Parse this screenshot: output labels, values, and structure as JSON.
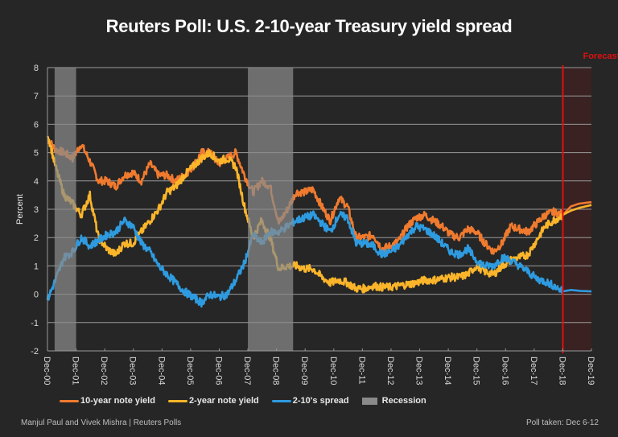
{
  "title": "Reuters Poll: U.S. 2-10-year Treasury yield spread",
  "footer": {
    "credit": "Manjul Paul and Vivek Mishra | Reuters Polls",
    "poll_taken": "Poll taken: Dec 6-12"
  },
  "colors": {
    "ten_year": "#f07a2e",
    "two_year": "#fbb52a",
    "spread": "#2e9be0",
    "recession": "#8a8a8a",
    "forecast_line": "#e01010",
    "forecast_shade": "#3a2222",
    "grid": "#9a9a9a",
    "background": "#262626"
  },
  "chart_data": {
    "type": "line",
    "title": "Reuters Poll: U.S. 2-10-year Treasury yield spread",
    "xlabel": "",
    "ylabel": "Percent",
    "ylim": [
      -2,
      8
    ],
    "yticks": [
      -2,
      -1,
      0,
      1,
      2,
      3,
      4,
      5,
      6,
      7,
      8
    ],
    "xlim": [
      2000.92,
      2019.92
    ],
    "xtick_labels": [
      "Dec-00",
      "Dec-01",
      "Dec-02",
      "Dec-03",
      "Dec-04",
      "Dec-05",
      "Dec-06",
      "Dec-07",
      "Dec-08",
      "Dec-09",
      "Dec-10",
      "Dec-11",
      "Dec-12",
      "Dec-13",
      "Dec-14",
      "Dec-15",
      "Dec-16",
      "Dec-17",
      "Dec-18",
      "Dec-19"
    ],
    "grid": true,
    "legend_position": "bottom",
    "annotation": {
      "text": "Forecast",
      "x": 2018.92
    },
    "recessions": [
      [
        2001.17,
        2001.92
      ],
      [
        2007.92,
        2009.5
      ]
    ],
    "x": [
      2000.92,
      2001.2,
      2001.5,
      2001.8,
      2002.1,
      2002.4,
      2002.7,
      2003.0,
      2003.3,
      2003.6,
      2003.9,
      2004.2,
      2004.5,
      2004.8,
      2005.1,
      2005.4,
      2005.7,
      2006.0,
      2006.3,
      2006.6,
      2006.9,
      2007.2,
      2007.5,
      2007.8,
      2008.1,
      2008.4,
      2008.7,
      2009.0,
      2009.3,
      2009.6,
      2009.9,
      2010.2,
      2010.5,
      2010.8,
      2011.1,
      2011.4,
      2011.7,
      2012.0,
      2012.3,
      2012.6,
      2012.9,
      2013.2,
      2013.5,
      2013.8,
      2014.1,
      2014.4,
      2014.7,
      2015.0,
      2015.3,
      2015.6,
      2015.9,
      2016.2,
      2016.5,
      2016.8,
      2017.1,
      2017.4,
      2017.7,
      2018.0,
      2018.3,
      2018.6,
      2018.92,
      2019.2,
      2019.5,
      2019.92
    ],
    "series": [
      {
        "name": "10-year note yield",
        "values": [
          5.5,
          5.1,
          5.0,
          4.8,
          5.3,
          4.7,
          4.0,
          4.0,
          3.8,
          4.2,
          4.3,
          4.0,
          4.6,
          4.2,
          4.2,
          4.0,
          4.2,
          4.5,
          5.0,
          5.0,
          4.6,
          4.8,
          5.0,
          4.2,
          3.6,
          4.0,
          3.8,
          2.5,
          3.0,
          3.6,
          3.6,
          3.7,
          3.1,
          2.6,
          3.4,
          3.1,
          2.0,
          2.0,
          2.1,
          1.6,
          1.7,
          1.9,
          2.4,
          2.7,
          2.8,
          2.6,
          2.4,
          2.1,
          2.0,
          2.3,
          2.2,
          1.8,
          1.5,
          1.8,
          2.4,
          2.3,
          2.2,
          2.5,
          2.8,
          2.9,
          2.8,
          3.1,
          3.2,
          3.25
        ]
      },
      {
        "name": "2-year note yield",
        "values": [
          5.7,
          4.5,
          3.5,
          3.2,
          2.8,
          3.5,
          2.0,
          1.6,
          1.4,
          1.8,
          1.8,
          2.2,
          2.6,
          3.0,
          3.6,
          3.8,
          4.2,
          4.5,
          4.8,
          5.0,
          4.7,
          4.8,
          4.5,
          3.1,
          2.0,
          2.6,
          2.0,
          0.9,
          1.0,
          1.0,
          0.9,
          0.9,
          0.6,
          0.4,
          0.5,
          0.4,
          0.2,
          0.2,
          0.3,
          0.25,
          0.25,
          0.3,
          0.35,
          0.4,
          0.5,
          0.5,
          0.55,
          0.6,
          0.6,
          0.7,
          1.0,
          0.8,
          0.7,
          1.0,
          1.2,
          1.3,
          1.4,
          1.9,
          2.4,
          2.6,
          2.8,
          2.95,
          3.05,
          3.15
        ]
      },
      {
        "name": "2-10's spread",
        "values": [
          -0.2,
          0.5,
          1.3,
          1.5,
          2.0,
          1.7,
          1.9,
          2.1,
          2.2,
          2.6,
          2.4,
          1.8,
          1.5,
          1.0,
          0.7,
          0.4,
          0.1,
          -0.1,
          -0.3,
          0.0,
          -0.1,
          0.0,
          0.5,
          1.1,
          2.1,
          1.8,
          2.2,
          2.2,
          2.4,
          2.6,
          2.7,
          2.8,
          2.5,
          2.2,
          2.8,
          2.7,
          1.8,
          1.8,
          1.7,
          1.4,
          1.5,
          1.7,
          2.1,
          2.4,
          2.3,
          2.1,
          1.8,
          1.5,
          1.4,
          1.6,
          1.2,
          1.0,
          1.0,
          1.3,
          1.2,
          1.0,
          0.8,
          0.55,
          0.45,
          0.3,
          0.1,
          0.15,
          0.12,
          0.1
        ]
      }
    ],
    "forecast_start": 2018.92
  },
  "legend": [
    {
      "label": "10-year note yield",
      "color_key": "ten_year"
    },
    {
      "label": "2-year note yield",
      "color_key": "two_year"
    },
    {
      "label": "2-10's spread",
      "color_key": "spread"
    },
    {
      "label": "Recession",
      "color_key": "recession"
    }
  ]
}
